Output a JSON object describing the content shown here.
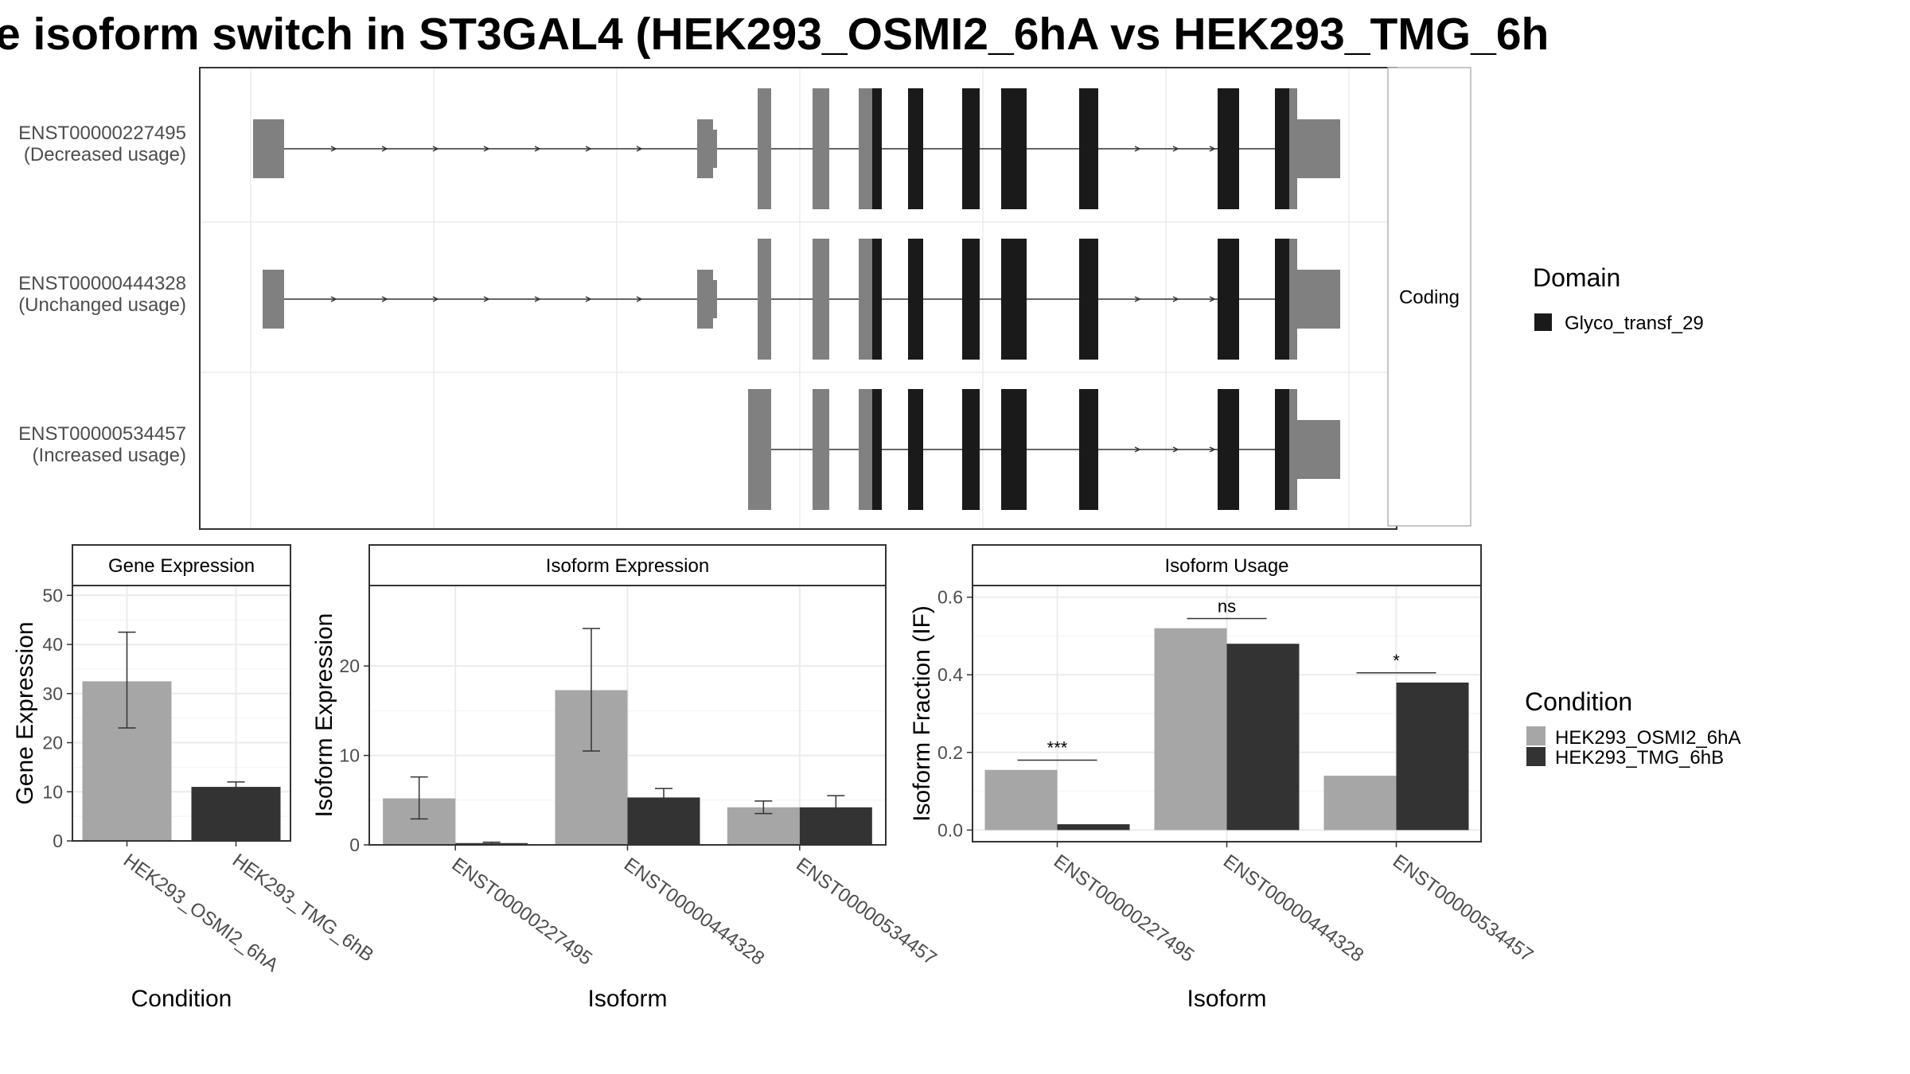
{
  "title": "e isoform switch in ST3GAL4 (HEK293_OSMI2_6hA vs HEK293_TMG_6h",
  "colors": {
    "domain": "#1a1a1a",
    "utr": "#808080",
    "cond_a": "#a6a6a6",
    "cond_b": "#333333",
    "panel_border": "#333333",
    "strip_fill": "#ffffff",
    "grid": "#ebebeb",
    "axis_text": "#4d4d4d"
  },
  "structure": {
    "facet_label": "Coding",
    "domain_legend": {
      "title": "Domain",
      "items": [
        "Glyco_transf_29"
      ]
    },
    "transcripts": [
      {
        "id": "ENST00000227495",
        "usage": "(Decreased usage)"
      },
      {
        "id": "ENST00000444328",
        "usage": "(Unchanged usage)"
      },
      {
        "id": "ENST00000534457",
        "usage": "(Increased usage)"
      }
    ]
  },
  "condition_legend": {
    "title": "Condition",
    "items": [
      "HEK293_OSMI2_6hA",
      "HEK293_TMG_6hB"
    ]
  },
  "chart_data": [
    {
      "type": "bar",
      "panel": "Gene Expression",
      "xlabel": "Condition",
      "ylabel": "Gene Expression",
      "ylim": [
        0,
        52
      ],
      "yticks": [
        0,
        10,
        20,
        30,
        40,
        50
      ],
      "categories": [
        "HEK293_OSMI2_6hA",
        "HEK293_TMG_6hB"
      ],
      "values": [
        32.5,
        11.0
      ],
      "err_low": [
        23.0,
        10.0
      ],
      "err_high": [
        42.5,
        12.0
      ]
    },
    {
      "type": "bar",
      "panel": "Isoform Expression",
      "xlabel": "Isoform",
      "ylabel": "Isoform Expression",
      "ylim": [
        0,
        29
      ],
      "yticks": [
        0,
        10,
        20
      ],
      "categories": [
        "ENST00000227495",
        "ENST00000444328",
        "ENST00000534457"
      ],
      "series": [
        {
          "name": "HEK293_OSMI2_6hA",
          "values": [
            5.2,
            17.3,
            4.2
          ],
          "err_low": [
            2.9,
            10.5,
            3.5
          ],
          "err_high": [
            7.6,
            24.2,
            4.9
          ]
        },
        {
          "name": "HEK293_TMG_6hB",
          "values": [
            0.2,
            5.3,
            4.2
          ],
          "err_low": [
            0.05,
            4.3,
            2.8
          ],
          "err_high": [
            0.3,
            6.3,
            5.5
          ]
        }
      ]
    },
    {
      "type": "bar",
      "panel": "Isoform Usage",
      "xlabel": "Isoform",
      "ylabel": "Isoform Fraction (IF)",
      "ylim": [
        -0.03,
        0.63
      ],
      "yticks": [
        0.0,
        0.2,
        0.4,
        0.6
      ],
      "ytick_labels": [
        "0.0",
        "0.2",
        "0.4",
        "0.6"
      ],
      "categories": [
        "ENST00000227495",
        "ENST00000444328",
        "ENST00000534457"
      ],
      "series": [
        {
          "name": "HEK293_OSMI2_6hA",
          "values": [
            0.155,
            0.52,
            0.14
          ]
        },
        {
          "name": "HEK293_TMG_6hB",
          "values": [
            0.015,
            0.48,
            0.38
          ]
        }
      ],
      "significance": [
        {
          "category": "ENST00000227495",
          "label": "***",
          "at": 0.18
        },
        {
          "category": "ENST00000444328",
          "label": "ns",
          "at": 0.545
        },
        {
          "category": "ENST00000534457",
          "label": "*",
          "at": 0.405
        }
      ]
    }
  ]
}
